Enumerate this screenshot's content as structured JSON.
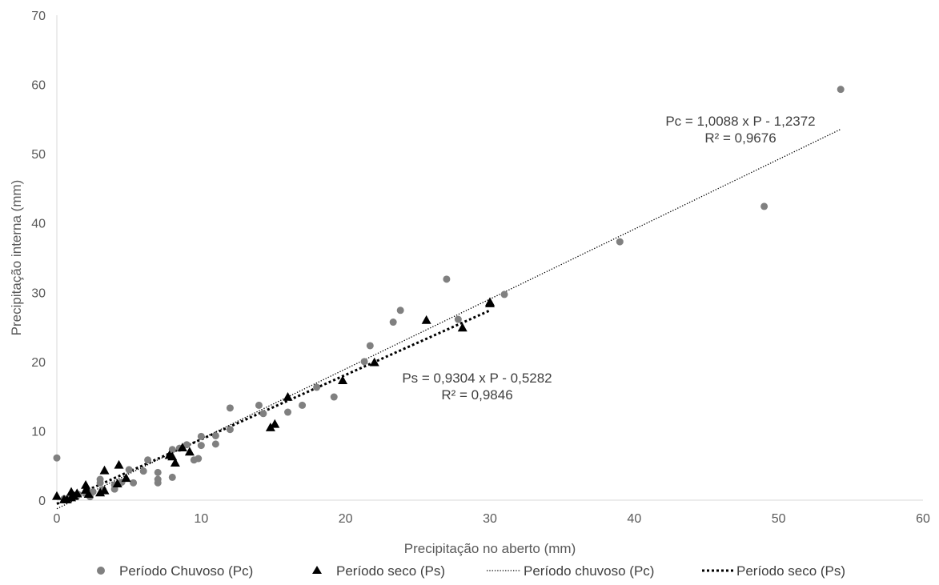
{
  "chart_data": {
    "type": "scatter",
    "title": "",
    "xlabel": "Precipitação no aberto (mm)",
    "ylabel": "Precipitação interna (mm)",
    "xlim": [
      0,
      60
    ],
    "ylim": [
      0,
      70
    ],
    "x_ticks": [
      "0",
      "10",
      "20",
      "30",
      "40",
      "50",
      "60"
    ],
    "y_ticks": [
      "0",
      "10",
      "20",
      "30",
      "40",
      "50",
      "60",
      "70"
    ],
    "grid": false,
    "legend_position": "bottom",
    "series": [
      {
        "name": "Período Chuvoso (Pc)",
        "marker": "circle",
        "color": "#808080",
        "points": [
          [
            0,
            6.1
          ],
          [
            0.5,
            0.2
          ],
          [
            1,
            0.5
          ],
          [
            1.5,
            0.8
          ],
          [
            2,
            1.0
          ],
          [
            2.3,
            0.5
          ],
          [
            2.5,
            1.2
          ],
          [
            3,
            2.5
          ],
          [
            3,
            3.0
          ],
          [
            3.2,
            1.5
          ],
          [
            4,
            1.6
          ],
          [
            4,
            2.2
          ],
          [
            4.5,
            2.6
          ],
          [
            5,
            4.4
          ],
          [
            5.3,
            2.5
          ],
          [
            6,
            4.2
          ],
          [
            6.3,
            5.8
          ],
          [
            7,
            2.5
          ],
          [
            7,
            3.0
          ],
          [
            7,
            4.0
          ],
          [
            8,
            7.3
          ],
          [
            8,
            3.3
          ],
          [
            8.5,
            7.5
          ],
          [
            9,
            8.0
          ],
          [
            9.5,
            5.8
          ],
          [
            9.8,
            6.0
          ],
          [
            10,
            9.2
          ],
          [
            10,
            7.9
          ],
          [
            11,
            8.1
          ],
          [
            11,
            9.3
          ],
          [
            12,
            13.3
          ],
          [
            12,
            10.2
          ],
          [
            14,
            13.7
          ],
          [
            14.3,
            12.5
          ],
          [
            16,
            12.7
          ],
          [
            17,
            13.7
          ],
          [
            18,
            16.3
          ],
          [
            19.2,
            14.9
          ],
          [
            21.7,
            22.3
          ],
          [
            21.3,
            20
          ],
          [
            23.3,
            25.7
          ],
          [
            23.8,
            27.4
          ],
          [
            27,
            31.9
          ],
          [
            27.8,
            26.1
          ],
          [
            31,
            29.7
          ],
          [
            39,
            37.3
          ],
          [
            49,
            42.4
          ],
          [
            54.3,
            59.3
          ]
        ]
      },
      {
        "name": "Período seco (Ps)",
        "marker": "triangle",
        "color": "#000000",
        "points": [
          [
            0,
            0.6
          ],
          [
            0.5,
            0.1
          ],
          [
            0.7,
            0.1
          ],
          [
            1,
            0.4
          ],
          [
            1,
            1.2
          ],
          [
            1.2,
            0.6
          ],
          [
            1.4,
            1.0
          ],
          [
            2,
            1.5
          ],
          [
            2,
            2.2
          ],
          [
            2.2,
            0.9
          ],
          [
            3,
            1.1
          ],
          [
            3.3,
            1.4
          ],
          [
            3.3,
            4.3
          ],
          [
            4.2,
            2.4
          ],
          [
            4.3,
            5.1
          ],
          [
            4.8,
            3.2
          ],
          [
            7.8,
            6.5
          ],
          [
            8,
            6.3
          ],
          [
            8.2,
            5.4
          ],
          [
            8.7,
            7.6
          ],
          [
            9.2,
            7.0
          ],
          [
            14.8,
            10.5
          ],
          [
            15.1,
            11.0
          ],
          [
            16,
            14.9
          ],
          [
            19.8,
            17.3
          ],
          [
            22,
            19.9
          ],
          [
            25.6,
            26.0
          ],
          [
            28.1,
            24.9
          ],
          [
            30,
            28.4
          ],
          [
            30,
            28.6
          ]
        ]
      }
    ],
    "trendlines": [
      {
        "name": "Período chuvoso (Pc)",
        "style": "dotted-thin",
        "color": "#000000",
        "slope": 1.0088,
        "intercept": -1.2372,
        "x_range": [
          0,
          54.3
        ],
        "equation": "Pc = 1,0088 x P - 1,2372",
        "r2": "R² = 0,9676"
      },
      {
        "name": "Período seco (Ps)",
        "style": "dotted-thick",
        "color": "#000000",
        "slope": 0.9304,
        "intercept": -0.5282,
        "x_range": [
          0,
          30
        ],
        "equation": "Ps = 0,9304 x P - 0,5282",
        "r2": "R² = 0,9846"
      }
    ]
  }
}
